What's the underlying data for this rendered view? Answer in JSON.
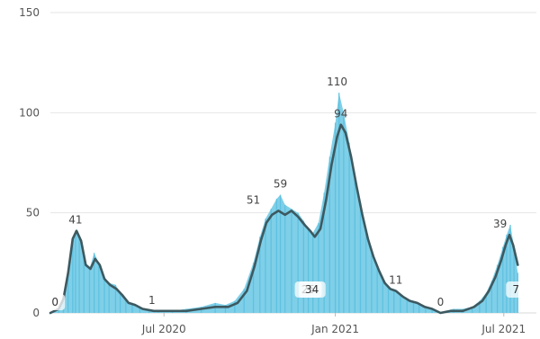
{
  "chart_data": {
    "type": "area",
    "title": "",
    "xlabel": "",
    "ylabel": "",
    "xlim": [
      "2020-03-01",
      "2021-08-05"
    ],
    "ylim": [
      0,
      150
    ],
    "grid": true,
    "legend": "none",
    "y_ticks": [
      "0",
      "50",
      "100",
      "150"
    ],
    "x_ticks": [
      {
        "date": "2020-07-01",
        "label": "Jul 2020"
      },
      {
        "date": "2021-01-01",
        "label": "Jan 2021"
      },
      {
        "date": "2021-07-01",
        "label": "Jul 2021"
      }
    ],
    "colors": {
      "daily_area": "#7fcfe8",
      "daily_bar": "#5bc0e0",
      "avg_line": "#3d5960",
      "grid": "#e6e6e6"
    },
    "series": [
      {
        "kind": "daily",
        "points": [
          [
            "2020-03-01",
            0
          ],
          [
            "2020-03-10",
            2
          ],
          [
            "2020-03-15",
            8
          ],
          [
            "2020-03-20",
            22
          ],
          [
            "2020-03-25",
            36
          ],
          [
            "2020-03-28",
            41
          ],
          [
            "2020-04-01",
            38
          ],
          [
            "2020-04-06",
            27
          ],
          [
            "2020-04-12",
            22
          ],
          [
            "2020-04-17",
            30
          ],
          [
            "2020-04-22",
            25
          ],
          [
            "2020-04-28",
            18
          ],
          [
            "2020-05-03",
            15
          ],
          [
            "2020-05-10",
            14
          ],
          [
            "2020-05-15",
            10
          ],
          [
            "2020-05-21",
            6
          ],
          [
            "2020-05-28",
            5
          ],
          [
            "2020-06-05",
            3
          ],
          [
            "2020-06-15",
            1
          ],
          [
            "2020-06-25",
            1
          ],
          [
            "2020-07-10",
            1
          ],
          [
            "2020-07-25",
            2
          ],
          [
            "2020-08-10",
            3
          ],
          [
            "2020-08-25",
            5
          ],
          [
            "2020-09-05",
            4
          ],
          [
            "2020-09-15",
            6
          ],
          [
            "2020-09-25",
            12
          ],
          [
            "2020-10-05",
            25
          ],
          [
            "2020-10-12",
            38
          ],
          [
            "2020-10-18",
            47
          ],
          [
            "2020-10-24",
            52
          ],
          [
            "2020-10-30",
            57
          ],
          [
            "2020-11-03",
            59
          ],
          [
            "2020-11-08",
            54
          ],
          [
            "2020-11-15",
            52
          ],
          [
            "2020-11-22",
            50
          ],
          [
            "2020-11-28",
            46
          ],
          [
            "2020-12-03",
            42
          ],
          [
            "2020-12-08",
            40
          ],
          [
            "2020-12-14",
            45
          ],
          [
            "2020-12-20",
            60
          ],
          [
            "2020-12-26",
            78
          ],
          [
            "2021-01-01",
            95
          ],
          [
            "2021-01-05",
            110
          ],
          [
            "2021-01-10",
            100
          ],
          [
            "2021-01-16",
            85
          ],
          [
            "2021-01-22",
            68
          ],
          [
            "2021-01-28",
            55
          ],
          [
            "2021-02-03",
            42
          ],
          [
            "2021-02-09",
            32
          ],
          [
            "2021-02-15",
            24
          ],
          [
            "2021-02-21",
            18
          ],
          [
            "2021-02-27",
            13
          ],
          [
            "2021-03-05",
            11
          ],
          [
            "2021-03-12",
            9
          ],
          [
            "2021-03-19",
            7
          ],
          [
            "2021-03-26",
            6
          ],
          [
            "2021-04-01",
            4
          ],
          [
            "2021-04-08",
            3
          ],
          [
            "2021-04-15",
            2
          ],
          [
            "2021-04-22",
            0
          ],
          [
            "2021-04-29",
            1
          ],
          [
            "2021-05-08",
            2
          ],
          [
            "2021-05-18",
            2
          ],
          [
            "2021-05-28",
            3
          ],
          [
            "2021-06-05",
            6
          ],
          [
            "2021-06-12",
            10
          ],
          [
            "2021-06-18",
            16
          ],
          [
            "2021-06-24",
            24
          ],
          [
            "2021-06-30",
            33
          ],
          [
            "2021-07-04",
            39
          ],
          [
            "2021-07-08",
            44
          ],
          [
            "2021-07-12",
            33
          ],
          [
            "2021-07-16",
            20
          ]
        ]
      },
      {
        "kind": "average",
        "points": [
          [
            "2020-03-01",
            0
          ],
          [
            "2020-03-10",
            2
          ],
          [
            "2020-03-15",
            7
          ],
          [
            "2020-03-20",
            20
          ],
          [
            "2020-03-25",
            37
          ],
          [
            "2020-03-29",
            41
          ],
          [
            "2020-04-03",
            36
          ],
          [
            "2020-04-08",
            24
          ],
          [
            "2020-04-13",
            22
          ],
          [
            "2020-04-18",
            27
          ],
          [
            "2020-04-23",
            24
          ],
          [
            "2020-04-28",
            17
          ],
          [
            "2020-05-04",
            14
          ],
          [
            "2020-05-11",
            12
          ],
          [
            "2020-05-17",
            9
          ],
          [
            "2020-05-24",
            5
          ],
          [
            "2020-05-31",
            4
          ],
          [
            "2020-06-08",
            2
          ],
          [
            "2020-06-20",
            1
          ],
          [
            "2020-07-10",
            1
          ],
          [
            "2020-07-25",
            1
          ],
          [
            "2020-08-10",
            2
          ],
          [
            "2020-08-25",
            3
          ],
          [
            "2020-09-08",
            3
          ],
          [
            "2020-09-18",
            5
          ],
          [
            "2020-09-28",
            11
          ],
          [
            "2020-10-06",
            23
          ],
          [
            "2020-10-13",
            36
          ],
          [
            "2020-10-19",
            45
          ],
          [
            "2020-10-25",
            49
          ],
          [
            "2020-11-01",
            51
          ],
          [
            "2020-11-08",
            49
          ],
          [
            "2020-11-15",
            51
          ],
          [
            "2020-11-22",
            48
          ],
          [
            "2020-11-29",
            44
          ],
          [
            "2020-12-05",
            41
          ],
          [
            "2020-12-10",
            38
          ],
          [
            "2020-12-16",
            42
          ],
          [
            "2020-12-22",
            56
          ],
          [
            "2020-12-28",
            74
          ],
          [
            "2021-01-03",
            88
          ],
          [
            "2021-01-07",
            94
          ],
          [
            "2021-01-12",
            90
          ],
          [
            "2021-01-18",
            78
          ],
          [
            "2021-01-24",
            63
          ],
          [
            "2021-01-30",
            49
          ],
          [
            "2021-02-05",
            37
          ],
          [
            "2021-02-11",
            28
          ],
          [
            "2021-02-17",
            21
          ],
          [
            "2021-02-23",
            15
          ],
          [
            "2021-03-01",
            12
          ],
          [
            "2021-03-07",
            11
          ],
          [
            "2021-03-15",
            8
          ],
          [
            "2021-03-22",
            6
          ],
          [
            "2021-03-30",
            5
          ],
          [
            "2021-04-07",
            3
          ],
          [
            "2021-04-15",
            2
          ],
          [
            "2021-04-24",
            0
          ],
          [
            "2021-05-05",
            1
          ],
          [
            "2021-05-18",
            1
          ],
          [
            "2021-05-30",
            3
          ],
          [
            "2021-06-08",
            6
          ],
          [
            "2021-06-15",
            11
          ],
          [
            "2021-06-22",
            18
          ],
          [
            "2021-06-28",
            26
          ],
          [
            "2021-07-03",
            34
          ],
          [
            "2021-07-07",
            39
          ],
          [
            "2021-07-11",
            34
          ],
          [
            "2021-07-16",
            24
          ]
        ]
      }
    ],
    "annotations": [
      {
        "text": "0",
        "date": "2020-03-06",
        "value": 0,
        "style": "box"
      },
      {
        "text": "41",
        "date": "2020-03-28",
        "value": 41,
        "style": "plain"
      },
      {
        "text": "1",
        "date": "2020-06-18",
        "value": 1,
        "style": "plain"
      },
      {
        "text": "51",
        "date": "2020-10-05",
        "value": 51,
        "style": "plain"
      },
      {
        "text": "59",
        "date": "2020-11-03",
        "value": 59,
        "style": "plain"
      },
      {
        "text": "25",
        "date": "2020-12-03",
        "value": 25,
        "style": "box"
      },
      {
        "text": "34",
        "date": "2020-12-07",
        "value": 34,
        "style": "box"
      },
      {
        "text": "110",
        "date": "2021-01-03",
        "value": 110,
        "style": "plain"
      },
      {
        "text": "94",
        "date": "2021-01-07",
        "value": 94,
        "style": "plain"
      },
      {
        "text": "11",
        "date": "2021-03-07",
        "value": 11,
        "style": "plain"
      },
      {
        "text": "0",
        "date": "2021-04-24",
        "value": 0,
        "style": "plain"
      },
      {
        "text": "39",
        "date": "2021-06-27",
        "value": 39,
        "style": "plain"
      },
      {
        "text": "7",
        "date": "2021-07-14",
        "value": 7,
        "style": "box"
      }
    ]
  }
}
